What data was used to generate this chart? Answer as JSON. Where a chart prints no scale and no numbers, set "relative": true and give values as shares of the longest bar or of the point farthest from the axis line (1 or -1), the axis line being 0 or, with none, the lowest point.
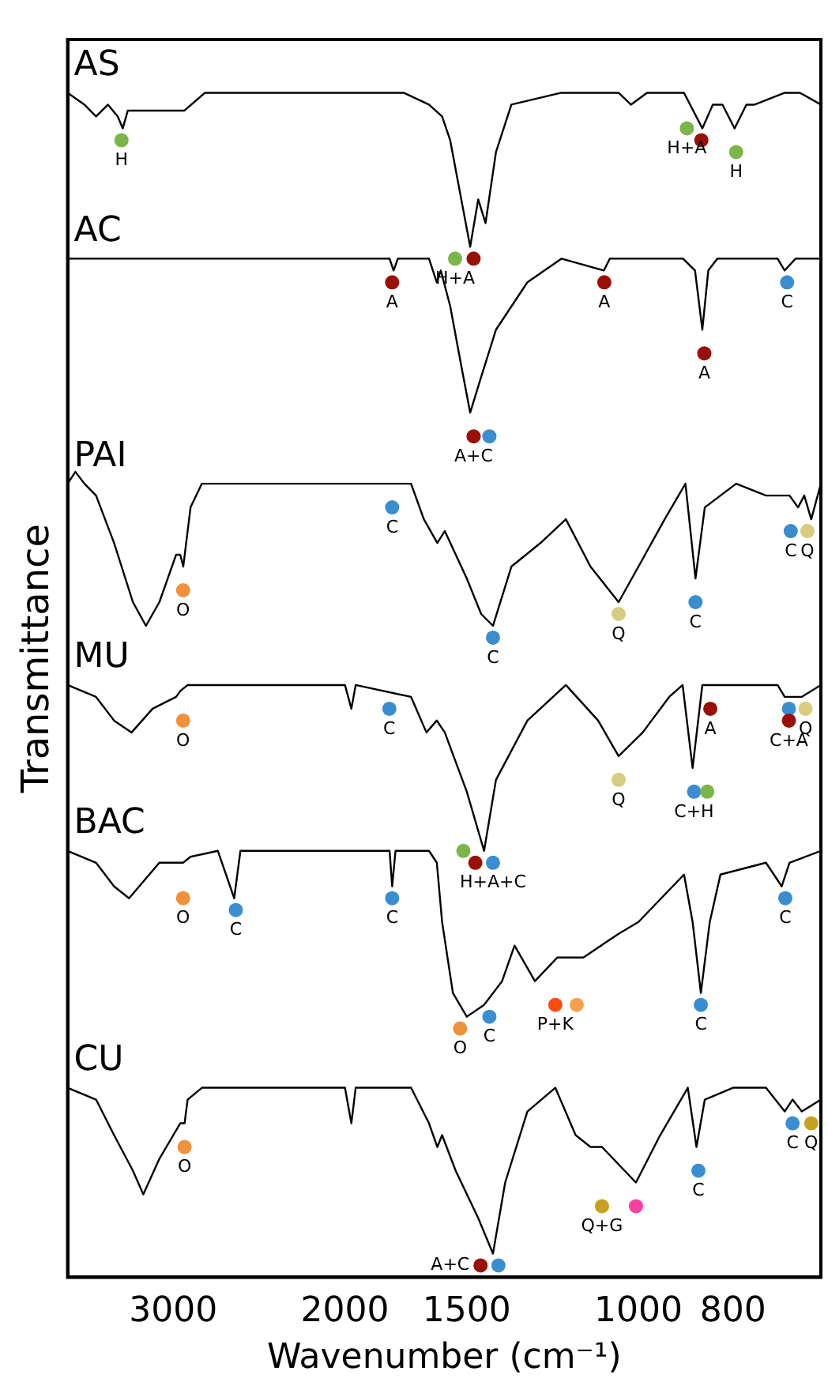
{
  "chart_data": {
    "type": "line",
    "relative": true,
    "xlabel": "Wavenumber (cm⁻¹)",
    "ylabel": "Transmittance",
    "xlim": [
      3850,
      650
    ],
    "xticks": [
      3000,
      2000,
      1500,
      1000,
      800
    ],
    "log": "x",
    "grid": false,
    "legend": false,
    "tick_labels": "x",
    "line_style": "solid",
    "series": [
      {
        "name": "AS",
        "color": "#000000",
        "marker": "none",
        "x": [
          3850,
          3700,
          3600,
          3500,
          3420,
          3380,
          3340,
          2922,
          2784,
          1741,
          1640,
          1590,
          1560,
          1488,
          1460,
          1435,
          1400,
          1350,
          1200,
          1048,
          1018,
          980,
          898,
          860,
          839,
          820,
          797,
          775,
          760,
          708,
          683,
          650
        ],
        "values": [
          1.0,
          0.99,
          0.98,
          0.99,
          0.98,
          0.97,
          0.985,
          0.985,
          1.0,
          1.0,
          0.99,
          0.98,
          0.96,
          0.87,
          0.91,
          0.89,
          0.95,
          0.99,
          1.0,
          1.0,
          0.99,
          1.0,
          1.0,
          0.97,
          0.99,
          0.99,
          0.97,
          0.99,
          0.99,
          1.0,
          1.0,
          0.99
        ]
      },
      {
        "name": "AC",
        "color": "#000000",
        "marker": "none",
        "x": [
          3850,
          3000,
          2000,
          1800,
          1783,
          1765,
          1640,
          1610,
          1595,
          1560,
          1520,
          1488,
          1450,
          1400,
          1300,
          1199,
          1085,
          1070,
          900,
          875,
          860,
          848,
          830,
          720,
          708,
          690,
          650
        ],
        "values": [
          0.86,
          0.86,
          0.86,
          0.86,
          0.85,
          0.86,
          0.86,
          0.84,
          0.85,
          0.82,
          0.77,
          0.73,
          0.76,
          0.8,
          0.84,
          0.86,
          0.85,
          0.86,
          0.86,
          0.85,
          0.8,
          0.85,
          0.86,
          0.86,
          0.85,
          0.86,
          0.86
        ]
      },
      {
        "name": "PAI",
        "color": "#000000",
        "marker": "none",
        "x": [
          3850,
          3780,
          3700,
          3600,
          3450,
          3300,
          3200,
          3100,
          2980,
          2951,
          2930,
          2880,
          2804,
          2000,
          1711,
          1660,
          1608,
          1580,
          1500,
          1450,
          1410,
          1350,
          1260,
          1187,
          1120,
          1048,
          1000,
          940,
          895,
          874,
          855,
          794,
          740,
          700,
          686,
          676,
          665,
          650
        ],
        "values": [
          0.67,
          0.68,
          0.67,
          0.66,
          0.62,
          0.57,
          0.55,
          0.57,
          0.61,
          0.61,
          0.6,
          0.65,
          0.67,
          0.67,
          0.67,
          0.64,
          0.62,
          0.63,
          0.59,
          0.56,
          0.55,
          0.6,
          0.62,
          0.64,
          0.6,
          0.57,
          0.6,
          0.64,
          0.67,
          0.59,
          0.65,
          0.67,
          0.66,
          0.66,
          0.65,
          0.66,
          0.64,
          0.67
        ]
      },
      {
        "name": "MU",
        "color": "#000000",
        "marker": "none",
        "x": [
          3850,
          3600,
          3450,
          3310,
          3150,
          2980,
          2950,
          2900,
          2000,
          1970,
          1950,
          1711,
          1650,
          1610,
          1580,
          1500,
          1440,
          1400,
          1300,
          1187,
          1100,
          1048,
          990,
          930,
          901,
          880,
          860,
          800,
          720,
          708,
          680,
          650
        ],
        "values": [
          0.5,
          0.49,
          0.47,
          0.46,
          0.48,
          0.49,
          0.495,
          0.5,
          0.5,
          0.48,
          0.5,
          0.49,
          0.46,
          0.47,
          0.46,
          0.41,
          0.36,
          0.42,
          0.47,
          0.5,
          0.47,
          0.44,
          0.46,
          0.49,
          0.5,
          0.43,
          0.5,
          0.5,
          0.5,
          0.49,
          0.49,
          0.5
        ]
      },
      {
        "name": "BAC",
        "color": "#000000",
        "marker": "none",
        "x": [
          3850,
          3600,
          3450,
          3330,
          3100,
          2980,
          2931,
          2880,
          2700,
          2598,
          2560,
          2000,
          1800,
          1789,
          1775,
          1640,
          1610,
          1590,
          1550,
          1500,
          1440,
          1380,
          1340,
          1277,
          1211,
          1139,
          1048,
          1000,
          898,
          880,
          863,
          845,
          824,
          740,
          713,
          700,
          650
        ],
        "values": [
          0.36,
          0.35,
          0.33,
          0.32,
          0.35,
          0.35,
          0.35,
          0.355,
          0.36,
          0.32,
          0.36,
          0.36,
          0.36,
          0.33,
          0.36,
          0.36,
          0.35,
          0.3,
          0.24,
          0.22,
          0.23,
          0.25,
          0.28,
          0.25,
          0.27,
          0.27,
          0.29,
          0.3,
          0.34,
          0.3,
          0.24,
          0.3,
          0.34,
          0.35,
          0.33,
          0.35,
          0.36
        ]
      },
      {
        "name": "CU",
        "color": "#000000",
        "marker": "none",
        "x": [
          3850,
          3600,
          3450,
          3300,
          3220,
          3100,
          2951,
          2921,
          2900,
          2804,
          2000,
          1970,
          1950,
          1711,
          1640,
          1608,
          1590,
          1540,
          1460,
          1410,
          1370,
          1300,
          1217,
          1160,
          1120,
          1090,
          1006,
          950,
          890,
          872,
          855,
          800,
          740,
          708,
          695,
          680,
          650
        ],
        "values": [
          0.16,
          0.15,
          0.12,
          0.09,
          0.07,
          0.1,
          0.13,
          0.13,
          0.15,
          0.16,
          0.16,
          0.13,
          0.16,
          0.16,
          0.13,
          0.11,
          0.12,
          0.09,
          0.05,
          0.02,
          0.08,
          0.14,
          0.16,
          0.12,
          0.11,
          0.11,
          0.08,
          0.12,
          0.16,
          0.11,
          0.15,
          0.16,
          0.16,
          0.14,
          0.15,
          0.14,
          0.15
        ]
      },
      {
        "type": "scatter",
        "marker": "circle",
        "color": "#7ab648",
        "x": [
          3390,
          892,
          794,
          1542,
          850,
          1512
        ],
        "values": [
          0.96,
          0.97,
          0.95,
          0.86,
          0.41,
          0.36
        ]
      },
      {
        "type": "scatter",
        "marker": "circle",
        "color": "#9b1006",
        "x": [
          862,
          1789,
          1476,
          1084,
          856,
          1476,
          844,
          701,
          1470,
          1452
        ],
        "values": [
          0.96,
          0.84,
          0.86,
          0.84,
          0.78,
          0.71,
          0.48,
          0.47,
          0.35,
          0.01
        ]
      },
      {
        "type": "scatter",
        "marker": "circle",
        "color": "#3a8ed0",
        "x": [
          704,
          1422,
          1789,
          1410,
          874,
          698,
          1801,
          877,
          701,
          1410,
          2588,
          1789,
          1422,
          863,
          707,
          1392,
          868,
          695
        ],
        "values": [
          0.84,
          0.71,
          0.65,
          0.54,
          0.57,
          0.63,
          0.48,
          0.41,
          0.48,
          0.35,
          0.31,
          0.32,
          0.22,
          0.23,
          0.32,
          0.01,
          0.09,
          0.13
        ]
      },
      {
        "type": "scatter",
        "marker": "circle",
        "color": "#d8cc7e",
        "x": [
          1048,
          671,
          1048,
          674
        ],
        "values": [
          0.56,
          0.63,
          0.42,
          0.48
        ]
      },
      {
        "type": "scatter",
        "marker": "circle",
        "color": "#c8a21e",
        "x": [
          1090,
          665
        ],
        "values": [
          0.06,
          0.13
        ]
      },
      {
        "type": "scatter",
        "marker": "circle",
        "color": "#f0913c",
        "x": [
          2931,
          2931,
          2931,
          1524,
          2921
        ],
        "values": [
          0.58,
          0.47,
          0.32,
          0.21,
          0.11
        ]
      },
      {
        "type": "scatter",
        "marker": "circle",
        "color": "#ff4a12",
        "x": [
          1217
        ],
        "values": [
          0.23
        ]
      },
      {
        "type": "scatter",
        "marker": "circle",
        "color": "#f6a04e",
        "x": [
          1157
        ],
        "values": [
          0.23
        ]
      },
      {
        "type": "scatter",
        "marker": "circle",
        "color": "#ff3fa0",
        "x": [
          1006
        ],
        "values": [
          0.06
        ]
      }
    ],
    "annotations": [
      {
        "text": "H",
        "x": 3390,
        "y": 0.96
      },
      {
        "text": "H+A",
        "x": 892,
        "y": 0.97
      },
      {
        "text": "H",
        "x": 794,
        "y": 0.95
      },
      {
        "text": "H+A",
        "x": 1542,
        "y": 0.86
      },
      {
        "text": "A",
        "x": 1789,
        "y": 0.84
      },
      {
        "text": "A",
        "x": 1084,
        "y": 0.84
      },
      {
        "text": "A",
        "x": 856,
        "y": 0.78
      },
      {
        "text": "C",
        "x": 704,
        "y": 0.84
      },
      {
        "text": "A+C",
        "x": 1476,
        "y": 0.71
      },
      {
        "text": "O",
        "x": 2931,
        "y": 0.58
      },
      {
        "text": "C",
        "x": 1789,
        "y": 0.65
      },
      {
        "text": "C",
        "x": 1410,
        "y": 0.54
      },
      {
        "text": "Q",
        "x": 1048,
        "y": 0.56
      },
      {
        "text": "C",
        "x": 874,
        "y": 0.57
      },
      {
        "text": "C",
        "x": 698,
        "y": 0.63
      },
      {
        "text": "Q",
        "x": 671,
        "y": 0.63
      },
      {
        "text": "O",
        "x": 2931,
        "y": 0.47
      },
      {
        "text": "C",
        "x": 1801,
        "y": 0.48
      },
      {
        "text": "Q",
        "x": 1048,
        "y": 0.42
      },
      {
        "text": "C+H",
        "x": 877,
        "y": 0.41
      },
      {
        "text": "A",
        "x": 844,
        "y": 0.48
      },
      {
        "text": "C+A",
        "x": 701,
        "y": 0.47
      },
      {
        "text": "Q",
        "x": 674,
        "y": 0.48
      },
      {
        "text": "H+A+C",
        "x": 1410,
        "y": 0.35
      },
      {
        "text": "O",
        "x": 2931,
        "y": 0.32
      },
      {
        "text": "C",
        "x": 2588,
        "y": 0.31
      },
      {
        "text": "C",
        "x": 1789,
        "y": 0.32
      },
      {
        "text": "O",
        "x": 1524,
        "y": 0.21
      },
      {
        "text": "C",
        "x": 1422,
        "y": 0.22
      },
      {
        "text": "P+K",
        "x": 1217,
        "y": 0.23
      },
      {
        "text": "C",
        "x": 863,
        "y": 0.23
      },
      {
        "text": "C",
        "x": 707,
        "y": 0.32
      },
      {
        "text": "O",
        "x": 2921,
        "y": 0.11
      },
      {
        "text": "C",
        "x": 868,
        "y": 0.09
      },
      {
        "text": "C",
        "x": 695,
        "y": 0.13
      },
      {
        "text": "Q",
        "x": 665,
        "y": 0.13
      },
      {
        "text": "Q+G",
        "x": 1090,
        "y": 0.06
      },
      {
        "text": "A+C",
        "x": 1452,
        "y": 0.01
      }
    ]
  }
}
